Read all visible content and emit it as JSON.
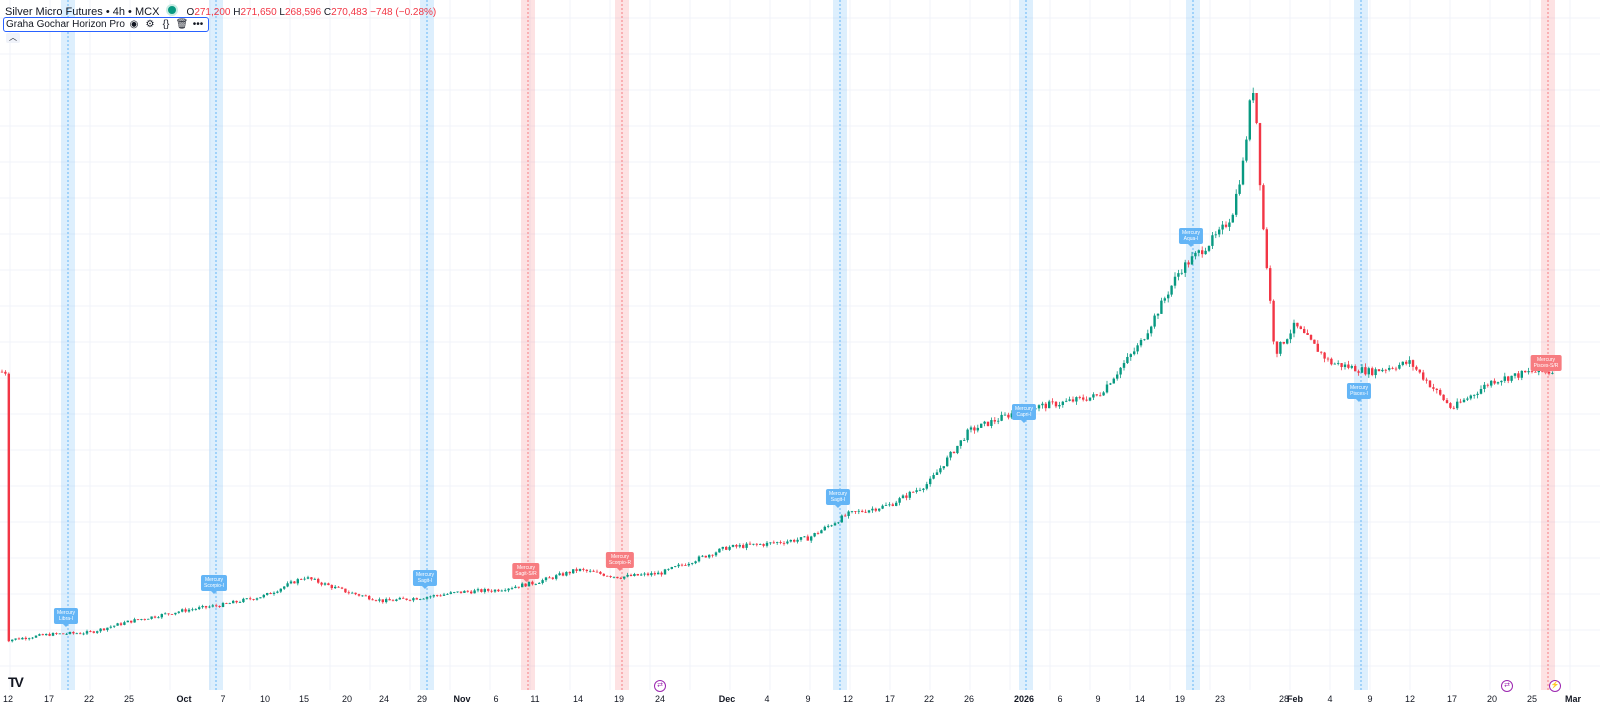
{
  "legend": {
    "symbol": "Silver Micro Futures • 4h • MCX",
    "o_label": "O",
    "o": "271,200",
    "h_label": "H",
    "h": "271,650",
    "l_label": "L",
    "l": "268,596",
    "c_label": "C",
    "c": "270,483",
    "change": "−748 (−0.28%)"
  },
  "indicator": {
    "name": "Graha Gochar Horizon Pro"
  },
  "colors": {
    "up": "#089981",
    "down": "#f23645",
    "ingress": "#64b5f6",
    "retro": "#f77c80"
  },
  "x_axis": {
    "labels": [
      "12",
      "17",
      "22",
      "25",
      "Oct",
      "7",
      "10",
      "15",
      "20",
      "24",
      "29",
      "Nov",
      "6",
      "11",
      "14",
      "19",
      "24",
      "Dec",
      "4",
      "9",
      "12",
      "17",
      "22",
      "26",
      "2026",
      "6",
      "9",
      "14",
      "19",
      "23",
      "28",
      "Feb",
      "4",
      "9",
      "12",
      "17",
      "20",
      "25",
      "Mar"
    ]
  },
  "transits": [
    {
      "label1": "Mercury",
      "label2": "Libra-I",
      "kind": "ingress"
    },
    {
      "label1": "Mercury",
      "label2": "Scorpio-I",
      "kind": "ingress"
    },
    {
      "label1": "Mercury",
      "label2": "Sagit-I",
      "kind": "ingress"
    },
    {
      "label1": "Mercury",
      "label2": "Sagit-S/R",
      "kind": "retro"
    },
    {
      "label1": "Mercury",
      "label2": "Scorpio-R",
      "kind": "retro"
    },
    {
      "label1": "Mercury",
      "label2": "Sagit-I",
      "kind": "ingress"
    },
    {
      "label1": "Mercury",
      "label2": "Capri-I",
      "kind": "ingress"
    },
    {
      "label1": "Mercury",
      "label2": "Aqua-I",
      "kind": "ingress"
    },
    {
      "label1": "Mercury",
      "label2": "Pisces-I",
      "kind": "ingress"
    },
    {
      "label1": "Mercury",
      "label2": "Pisces-S/R",
      "kind": "retro"
    }
  ],
  "events": [
    {
      "symbol": "⇄",
      "icon": "event-marker-icon"
    },
    {
      "symbol": "⇄",
      "icon": "event-marker-icon"
    },
    {
      "symbol": "⚡",
      "icon": "lightning-icon"
    }
  ],
  "chart_data": {
    "type": "candlestick",
    "series": [
      {
        "name": "Silver Micro Futures",
        "close_path": [
          [
            "12",
            100
          ],
          [
            "17",
            103
          ],
          [
            "22",
            104
          ],
          [
            "25",
            110
          ],
          [
            "Oct",
            116
          ],
          [
            "7",
            119
          ],
          [
            "10",
            124
          ],
          [
            "15",
            134
          ],
          [
            "20",
            126
          ],
          [
            "24",
            121
          ],
          [
            "29",
            123
          ],
          [
            "Nov",
            126
          ],
          [
            "6",
            127
          ],
          [
            "11",
            131
          ],
          [
            "14",
            138
          ],
          [
            "19",
            134
          ],
          [
            "24",
            136
          ],
          [
            "Dec",
            150
          ],
          [
            "4",
            152
          ],
          [
            "9",
            155
          ],
          [
            "12",
            168
          ],
          [
            "17",
            173
          ],
          [
            "22",
            185
          ],
          [
            "26",
            213
          ],
          [
            "2026",
            225
          ],
          [
            "6",
            228
          ],
          [
            "9",
            232
          ],
          [
            "14",
            260
          ],
          [
            "19",
            300
          ],
          [
            "23",
            320
          ],
          [
            "28",
            395
          ],
          [
            "Feb",
            270
          ],
          [
            "4",
            250
          ],
          [
            "9",
            245
          ],
          [
            "12",
            250
          ],
          [
            "17",
            225
          ],
          [
            "20",
            240
          ],
          [
            "25",
            245
          ]
        ]
      }
    ],
    "annotations": [
      "Mercury Libra-I",
      "Mercury Scorpio-I",
      "Mercury Sagit-I",
      "Mercury Sagit-S/R",
      "Mercury Scorpio-R",
      "Mercury Sagit-I",
      "Mercury Capri-I",
      "Mercury Aqua-I",
      "Mercury Pisces-I",
      "Mercury Pisces-S/R"
    ]
  }
}
